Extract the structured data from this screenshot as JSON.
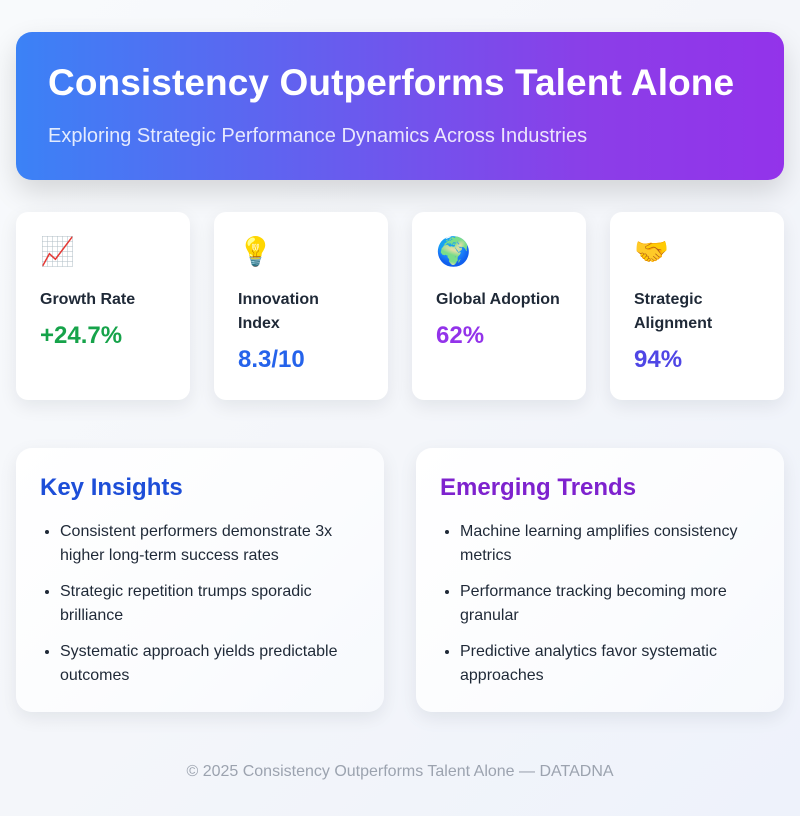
{
  "header": {
    "title": "Consistency Outperforms Talent Alone",
    "subtitle": "Exploring Strategic Performance Dynamics Across Industries",
    "gradient_start": "#3b82f6",
    "gradient_end": "#9333ea"
  },
  "metrics": [
    {
      "icon": "📈",
      "icon_name": "chart-increasing-icon",
      "label": "Growth Rate",
      "value": "+24.7%",
      "color": "#16a34a"
    },
    {
      "icon": "💡",
      "icon_name": "light-bulb-icon",
      "label": "Innovation Index",
      "value": "8.3/10",
      "color": "#2563eb"
    },
    {
      "icon": "🌍",
      "icon_name": "globe-icon",
      "label": "Global Adoption",
      "value": "62%",
      "color": "#9333ea"
    },
    {
      "icon": "🤝",
      "icon_name": "handshake-icon",
      "label": "Strategic Alignment",
      "value": "94%",
      "color": "#4f46e5"
    }
  ],
  "panels": [
    {
      "title": "Key Insights",
      "color": "#1d4ed8",
      "items": [
        "Consistent performers demonstrate 3x higher long-term success rates",
        "Strategic repetition trumps sporadic brilliance",
        "Systematic approach yields predictable outcomes"
      ]
    },
    {
      "title": "Emerging Trends",
      "color": "#7e22ce",
      "items": [
        "Machine learning amplifies consistency metrics",
        "Performance tracking becoming more granular",
        "Predictive analytics favor systematic approaches"
      ]
    }
  ],
  "footer": {
    "text": "© 2025 Consistency Outperforms Talent Alone — DATADNA"
  }
}
